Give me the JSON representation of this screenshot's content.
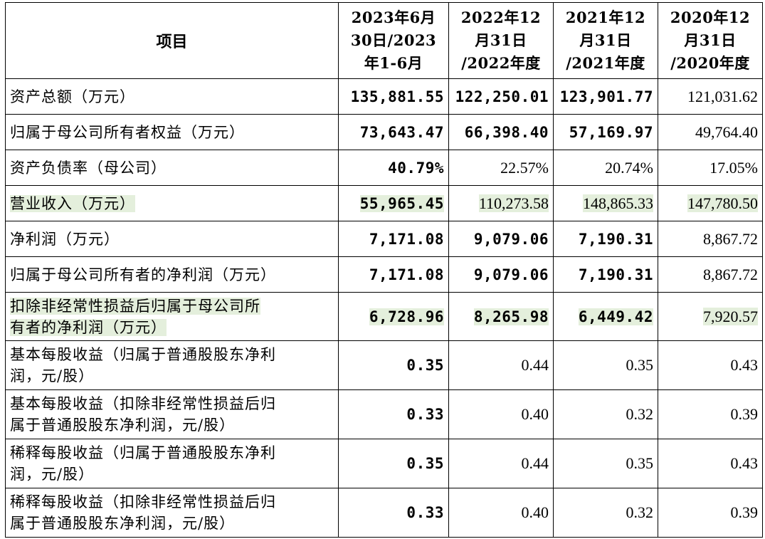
{
  "table": {
    "header": {
      "item": "项目",
      "columns": [
        [
          "2023年6月",
          "30日/2023",
          "年1-6月"
        ],
        [
          "2022年12",
          "月31日",
          "/2022年度"
        ],
        [
          "2021年12",
          "月31日",
          "/2021年度"
        ],
        [
          "2020年12",
          "月31日",
          "/2020年度"
        ]
      ]
    },
    "rows": [
      {
        "label": [
          "资产总额（万元）"
        ],
        "values": [
          "135,881.55",
          "122,250.01",
          "123,901.77",
          "121,031.62"
        ]
      },
      {
        "label": [
          "归属于母公司所有者权益（万元）"
        ],
        "values": [
          "73,643.47",
          "66,398.40",
          "57,169.97",
          "49,764.40"
        ]
      },
      {
        "label": [
          "资产负债率（母公司）"
        ],
        "values": [
          "40.79%",
          "22.57%",
          "20.74%",
          "17.05%"
        ]
      },
      {
        "label": [
          "营业收入（万元）"
        ],
        "values": [
          "55,965.45",
          "110,273.58",
          "148,865.33",
          "147,780.50"
        ]
      },
      {
        "label": [
          "净利润（万元）"
        ],
        "values": [
          "7,171.08",
          "9,079.06",
          "7,190.31",
          "8,867.72"
        ]
      },
      {
        "label": [
          "归属于母公司所有者的净利润（万元）"
        ],
        "values": [
          "7,171.08",
          "9,079.06",
          "7,190.31",
          "8,867.72"
        ]
      },
      {
        "label": [
          "扣除非经常性损益后归属于母公司所",
          "有者的净利润（万元）"
        ],
        "values": [
          "6,728.96",
          "8,265.98",
          "6,449.42",
          "7,920.57"
        ]
      },
      {
        "label": [
          "基本每股收益（归属于普通股股东净利",
          "润，元/股）"
        ],
        "values": [
          "0.35",
          "0.44",
          "0.35",
          "0.43"
        ]
      },
      {
        "label": [
          "基本每股收益（扣除非经常性损益后归",
          "属于普通股股东净利润，元/股）"
        ],
        "values": [
          "0.33",
          "0.40",
          "0.32",
          "0.39"
        ]
      },
      {
        "label": [
          "稀释每股收益（归属于普通股股东净利",
          "润，元/股）"
        ],
        "values": [
          "0.35",
          "0.44",
          "0.35",
          "0.43"
        ]
      },
      {
        "label": [
          "稀释每股收益（扣除非经常性损益后归",
          "属于普通股股东净利润，元/股）"
        ],
        "values": [
          "0.33",
          "0.40",
          "0.32",
          "0.39"
        ]
      }
    ]
  },
  "colors": {
    "highlight": "#e4efdc",
    "border": "#000000"
  }
}
